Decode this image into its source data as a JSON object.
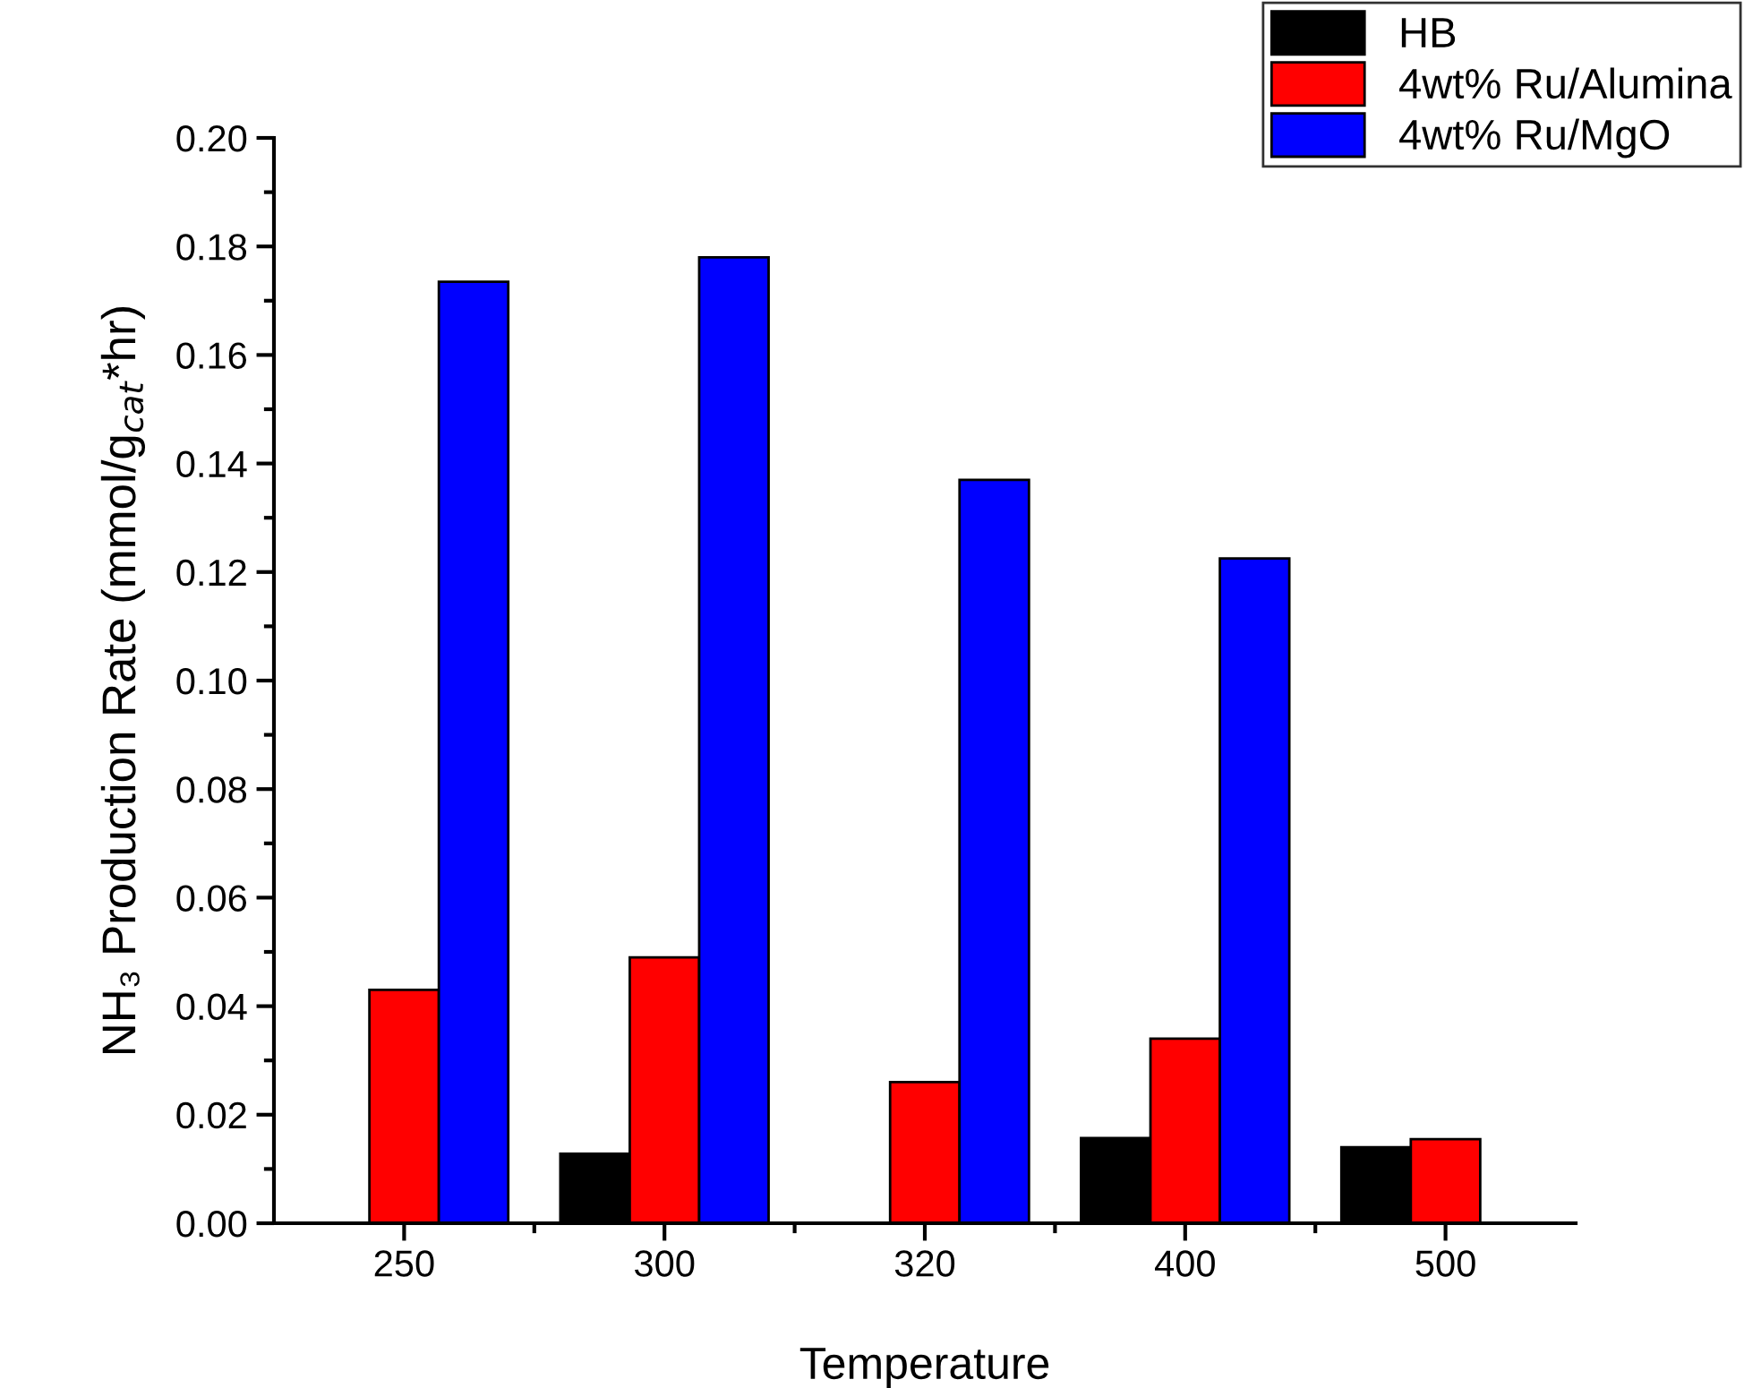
{
  "chart_data": {
    "type": "bar",
    "xlabel": "Temperature",
    "ylabel": "NH₃ Production Rate (mmol/g$_{cat}$*hr)",
    "categories": [
      "250",
      "300",
      "320",
      "400",
      "500"
    ],
    "series": [
      {
        "name": "HB",
        "color": "#000000",
        "values": [
          null,
          0.0128,
          null,
          0.0157,
          0.014
        ]
      },
      {
        "name": "4wt% Ru/Alumina",
        "color": "#ff0000",
        "values": [
          0.043,
          0.049,
          0.026,
          0.034,
          0.0155
        ]
      },
      {
        "name": "4wt% Ru/MgO",
        "color": "#0000ff",
        "values": [
          0.1735,
          0.178,
          0.137,
          0.1225,
          null
        ]
      }
    ],
    "ylim": [
      0,
      0.2
    ],
    "yticks": [
      {
        "value": 0,
        "label": "0.00"
      },
      {
        "value": 0.02,
        "label": "0.02"
      },
      {
        "value": 0.04,
        "label": "0.04"
      },
      {
        "value": 0.06,
        "label": "0.06"
      },
      {
        "value": 0.08,
        "label": "0.08"
      },
      {
        "value": 0.1,
        "label": "0.10"
      },
      {
        "value": 0.12,
        "label": "0.12"
      },
      {
        "value": 0.14,
        "label": "0.14"
      },
      {
        "value": 0.16,
        "label": "0.16"
      },
      {
        "value": 0.18,
        "label": "0.18"
      },
      {
        "value": 0.2,
        "label": "0.20"
      }
    ],
    "grid": false,
    "legend": "top right"
  }
}
